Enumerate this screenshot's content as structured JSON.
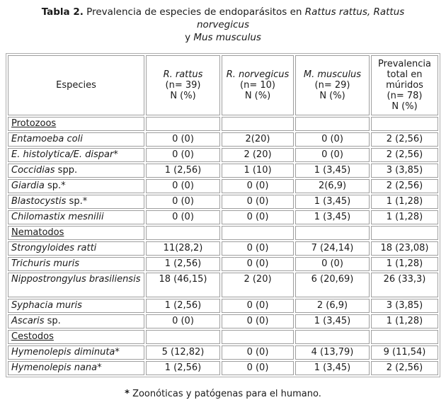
{
  "colors": {
    "text": "#1a1a1a",
    "cell_border": "#9e9e9e",
    "table_border": "#adadad",
    "background": "#ffffff"
  },
  "title": {
    "label": "Tabla 2.",
    "normal1": " Prevalencia de especies de endoparásitos en ",
    "italic1": "Rattus rattus, Rattus norvegicus",
    "normal2": "y ",
    "italic2": "Mus musculus"
  },
  "table": {
    "columns": [
      {
        "name": "especies",
        "lines": [
          {
            "text": "Especies"
          }
        ]
      },
      {
        "name": "r-rattus",
        "lines": [
          {
            "text": "R. rattus",
            "italic": true
          },
          {
            "text": "(n= 39)"
          },
          {
            "text": "N (%)"
          }
        ]
      },
      {
        "name": "r-norvegicus",
        "lines": [
          {
            "text": "R. norvegicus",
            "italic": true
          },
          {
            "text": "(n= 10)"
          },
          {
            "text": "N (%)"
          }
        ]
      },
      {
        "name": "m-musculus",
        "lines": [
          {
            "text": "M. musculus",
            "italic": true
          },
          {
            "text": "(n= 29)"
          },
          {
            "text": "N (%)"
          }
        ]
      },
      {
        "name": "prevalencia-total",
        "lines": [
          {
            "text": "Prevalencia"
          },
          {
            "text": "total en"
          },
          {
            "text": "múridos"
          },
          {
            "text": "(n= 78)"
          },
          {
            "text": "N (%)"
          }
        ]
      }
    ],
    "rows": [
      {
        "type": "section",
        "label": "Protozoos"
      },
      {
        "type": "data",
        "name": [
          {
            "t": "Entamoeba coli",
            "i": true
          }
        ],
        "values": [
          "0 (0)",
          "2(20)",
          "0 (0)",
          "2 (2,56)"
        ]
      },
      {
        "type": "data",
        "name": [
          {
            "t": "E. histolytica/E. dispar",
            "i": true
          },
          {
            "t": "*"
          }
        ],
        "values": [
          "0 (0)",
          "2 (20)",
          "0 (0)",
          "2 (2,56)"
        ]
      },
      {
        "type": "data",
        "name": [
          {
            "t": "Coccidias",
            "i": true
          },
          {
            "t": " spp."
          }
        ],
        "values": [
          "1 (2,56)",
          "1 (10)",
          "1 (3,45)",
          "3 (3,85)"
        ]
      },
      {
        "type": "data",
        "name": [
          {
            "t": "Giardia",
            "i": true
          },
          {
            "t": " sp.*"
          }
        ],
        "values": [
          "0 (0)",
          "0 (0)",
          "2(6,9)",
          "2 (2,56)"
        ]
      },
      {
        "type": "data",
        "name": [
          {
            "t": "Blastocystis",
            "i": true
          },
          {
            "t": " sp.*"
          }
        ],
        "values": [
          "0 (0)",
          "0 (0)",
          "1 (3,45)",
          "1 (1,28)"
        ]
      },
      {
        "type": "data",
        "name": [
          {
            "t": "Chilomastix mesnilii",
            "i": true
          }
        ],
        "values": [
          "0 (0)",
          "0 (0)",
          "1 (3,45)",
          "1 (1,28)"
        ]
      },
      {
        "type": "section",
        "label": "Nematodos"
      },
      {
        "type": "data",
        "name": [
          {
            "t": "Strongyloides ratti",
            "i": true
          }
        ],
        "values": [
          "11(28,2)",
          "0 (0)",
          "7 (24,14)",
          "18 (23,08)"
        ]
      },
      {
        "type": "data",
        "name": [
          {
            "t": "Trichuris muris",
            "i": true
          }
        ],
        "values": [
          "1 (2,56)",
          "0 (0)",
          "0 (0)",
          "1 (1,28)"
        ]
      },
      {
        "type": "data",
        "tall": true,
        "name": [
          {
            "t": "Nippostrongylus brasiliensis",
            "i": true
          }
        ],
        "values": [
          "18 (46,15)",
          "2 (20)",
          "6 (20,69)",
          "26 (33,3)"
        ]
      },
      {
        "type": "data",
        "name": [
          {
            "t": "Syphacia muris",
            "i": true
          }
        ],
        "values": [
          "1 (2,56)",
          "0 (0)",
          "2 (6,9)",
          "3 (3,85)"
        ]
      },
      {
        "type": "data",
        "name": [
          {
            "t": "Ascaris",
            "i": true
          },
          {
            "t": " sp."
          }
        ],
        "values": [
          "0 (0)",
          "0 (0)",
          "1 (3,45)",
          "1 (1,28)"
        ]
      },
      {
        "type": "section",
        "label": "Cestodos"
      },
      {
        "type": "data",
        "name": [
          {
            "t": "Hymenolepis diminuta",
            "i": true
          },
          {
            "t": "*"
          }
        ],
        "values": [
          "5 (12,82)",
          "0 (0)",
          "4 (13,79)",
          "9 (11,54)"
        ]
      },
      {
        "type": "data",
        "name": [
          {
            "t": "Hymenolepis nana",
            "i": true
          },
          {
            "t": "*"
          }
        ],
        "values": [
          "1 (2,56)",
          "0 (0)",
          "1 (3,45)",
          "2 (2,56)"
        ]
      }
    ]
  },
  "footnote": {
    "marker": "*",
    "text": " Zoonóticas y patógenas para el humano."
  }
}
